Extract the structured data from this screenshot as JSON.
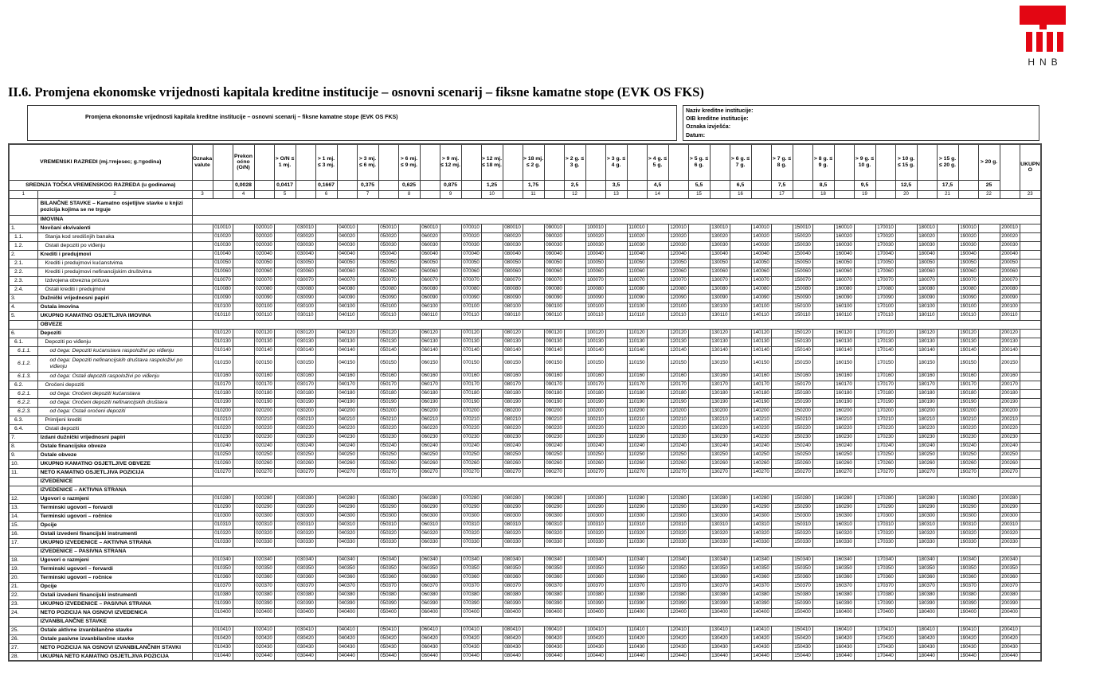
{
  "logo": {
    "text": "HNB",
    "color": "#e30613"
  },
  "page_title": "II.6. Promjena ekonomske vrijednosti kapitala kreditne institucije – osnovni scenarij – fiksne kamatne stope (EVK OS FKS)",
  "info": {
    "subtitle": "Promjena ekonomske vrijednosti kapitala kreditne institucije – osnovni scenarij – fiksne kamatne stope (EVK OS FKS)",
    "fields": [
      "Naziv kreditne institucije:",
      "OIB kreditne institucije:",
      "Oznaka izvješća:",
      "Datum:"
    ]
  },
  "table": {
    "header": {
      "time_classes_label": "VREMENSKI RAZREDI (mj.=mjesec; g.=godina)",
      "currency_label": "Oznaka valute",
      "midpoint_label": "SREDNJA TOČKA VREMENSKOG RAZREDA (u godinama)",
      "col_numbers": [
        "1",
        "2",
        "3"
      ],
      "buckets": [
        {
          "label": "Prekonoćno (O/N)",
          "midpoint": "0,0028",
          "col": "4"
        },
        {
          "label": "> O/N ≤ 1 mj.",
          "midpoint": "0,0417",
          "col": "5"
        },
        {
          "label": "> 1 mj. ≤ 3 mj.",
          "midpoint": "0,1667",
          "col": "6"
        },
        {
          "label": "> 3 mj. ≤ 6 mj.",
          "midpoint": "0,375",
          "col": "7"
        },
        {
          "label": "> 6 mj. ≤ 9 mj.",
          "midpoint": "0,625",
          "col": "8"
        },
        {
          "label": "> 9 mj. ≤ 12 mj.",
          "midpoint": "0,875",
          "col": "9"
        },
        {
          "label": "> 12 mj. ≤ 18 mj.",
          "midpoint": "1,25",
          "col": "10"
        },
        {
          "label": "> 18 mj. ≤ 2 g.",
          "midpoint": "1,75",
          "col": "11"
        },
        {
          "label": "> 2 g. ≤ 3 g.",
          "midpoint": "2,5",
          "col": "12"
        },
        {
          "label": "> 3 g. ≤ 4 g.",
          "midpoint": "3,5",
          "col": "13"
        },
        {
          "label": "> 4 g. ≤ 5 g.",
          "midpoint": "4,5",
          "col": "14"
        },
        {
          "label": "> 5 g. ≤ 6 g.",
          "midpoint": "5,5",
          "col": "15"
        },
        {
          "label": "> 6 g. ≤ 7 g.",
          "midpoint": "6,5",
          "col": "16"
        },
        {
          "label": "> 7 g. ≤ 8 g.",
          "midpoint": "7,5",
          "col": "17"
        },
        {
          "label": "> 8 g. ≤ 9 g.",
          "midpoint": "8,5",
          "col": "18"
        },
        {
          "label": "> 9 g. ≤ 10 g.",
          "midpoint": "9,5",
          "col": "19"
        },
        {
          "label": "> 10 g. ≤ 15 g.",
          "midpoint": "12,5",
          "col": "20"
        },
        {
          "label": "> 15 g. ≤ 20 g.",
          "midpoint": "17,5",
          "col": "21"
        },
        {
          "label": "> 20 g.",
          "midpoint": "25",
          "col": "22"
        },
        {
          "label": "UKUPNO",
          "midpoint": "",
          "col": "23"
        }
      ]
    },
    "rows": [
      {
        "num": "",
        "label": "BILANČNE STAVKE – Kamatno osjetljive stavke u knjizi pozicija kojima se ne trguje",
        "type": "section",
        "tall": true,
        "thick": true
      },
      {
        "num": "",
        "label": "IMOVINA",
        "type": "section",
        "thick": true
      },
      {
        "num": "1.",
        "label": "Novčani ekvivalenti",
        "bold": true,
        "thick": true,
        "codes": "010010 020010 030010 040010 050010 060010 070010 080010 090010 100010 110010 120010 130010 140010 150010 160010 170010 180010 190010 200010"
      },
      {
        "num": "1.1.",
        "label": "Stanja kod središnjih banaka",
        "codes": "010020 020020 030020 040020 050020 060020 070020 080020 090020 100020 110020 120020 130020 140020 150020 160020 170020 180020 190020 200020"
      },
      {
        "num": "1.2.",
        "label": "Ostali depoziti po viđenju",
        "codes": "010030 020030 030030 040030 050030 060030 070030 080030 090030 100030 110030 120030 130030 140030 150030 160030 170030 180030 190030 200030"
      },
      {
        "num": "2.",
        "label": "Krediti i predujmovi",
        "bold": true,
        "thick": true,
        "codes": "010040 020040 030040 040040 050040 060040 070040 080040 090040 100040 110040 120040 130040 140040 150040 160040 170040 180040 190040 200040"
      },
      {
        "num": "2.1.",
        "label": "Krediti i predujmovi kućanstvima",
        "codes": "010050 020050 030050 040050 050050 060050 070050 080050 090050 100050 110050 120050 130050 140050 150050 160050 170050 180050 190050 200050"
      },
      {
        "num": "2.2.",
        "label": "Krediti i predujmovi nefinancijskim društvima",
        "codes": "010060 020060 030060 040060 050060 060060 070060 080060 090060 100060 110060 120060 130060 140060 150060 160060 170060 180060 190060 200060"
      },
      {
        "num": "2.3.",
        "label": "Izdvojena obvezna pričuva",
        "codes": "010070 020070 030070 040070 050070 060070 070070 080070 090070 100070 110070 120070 130070 140070 150070 160070 170070 180070 190070 200070"
      },
      {
        "num": "2.4.",
        "label": "Ostali krediti i predujmovi",
        "codes": "010080 020080 030080 040080 050080 060080 070080 080080 090080 100080 110080 120080 130080 140080 150080 160080 170080 180080 190080 200080"
      },
      {
        "num": "3.",
        "label": "Dužnički vrijednosni papiri",
        "bold": true,
        "thick": true,
        "codes": "010090 020090 030090 040090 050090 060090 070090 080090 090090 100090 110090 120090 130090 140090 150090 160090 170090 180090 190090 200090"
      },
      {
        "num": "4.",
        "label": "Ostala imovina",
        "bold": true,
        "thick": true,
        "codes": "010100 020100 030100 040100 050100 060100 070100 080100 090100 100100 110100 120100 130100 140100 150100 160100 170100 180100 190100 200100"
      },
      {
        "num": "5.",
        "label": "UKUPNO KAMATNO OSJETLJIVA IMOVINA",
        "bold": true,
        "thick": true,
        "codes": "010110 020110 030110 040110 050110 060110 070110 080110 090110 100110 110110 120110 130110 140110 150110 160110 170110 180110 190110 200110"
      },
      {
        "num": "",
        "label": "OBVEZE",
        "type": "section",
        "thick": true
      },
      {
        "num": "6.",
        "label": "Depoziti",
        "bold": true,
        "thick": true,
        "codes": "010120 020120 030120 040120 050120 060120 070120 080120 090120 100120 110120 120120 130120 140120 150120 160120 170120 180120 190120 200120"
      },
      {
        "num": "6.1.",
        "label": "Depoziti po viđenju",
        "codes": "010130 020130 030130 040130 050130 060130 070130 080130 090130 100130 110130 120130 130130 140130 150130 160130 170130 180130 190130 200130"
      },
      {
        "num": "6.1.1.",
        "label": "od čega: Depoziti kućanstava raspoloživi po viđenju",
        "italic": true,
        "codes": "010140 020140 030140 040140 050140 060140 070140 080140 090140 100140 110140 120140 130140 140140 150140 160140 170140 180140 190140 200140"
      },
      {
        "num": "6.1.2.",
        "label": "od čega: Depoziti nefinancijskih društava raspoloživi po viđenju",
        "italic": true,
        "tall": true,
        "codes": "010150 020150 030150 040150 050150 060150 070150 080150 090150 100150 110150 120150 130150 140150 150150 160150 170150 180150 190150 200150"
      },
      {
        "num": "6.1.3.",
        "label": "od čega: Ostali depoziti raspoloživi po viđenju",
        "italic": true,
        "codes": "010160 020160 030160 040160 050160 060160 070160 080160 090160 100160 110160 120160 130160 140160 150160 160160 170160 180160 190160 200160"
      },
      {
        "num": "6.2.",
        "label": "Oročeni depoziti",
        "codes": "010170 020170 030170 040170 050170 060170 070170 080170 090170 100170 110170 120170 130170 140170 150170 160170 170170 180170 190170 200170"
      },
      {
        "num": "6.2.1.",
        "label": "od čega: Oročeni depoziti kućanstava",
        "italic": true,
        "codes": "010180 020180 030180 040180 050180 060180 070180 080180 090180 100180 110180 120180 130180 140180 150180 160180 170180 180180 190180 200180"
      },
      {
        "num": "6.2.2.",
        "label": "od čega: Oročeni depoziti nefinancijskih društava",
        "italic": true,
        "codes": "010190 020190 030190 040190 050190 060190 070190 080190 090190 100190 110190 120190 130190 140190 150190 160190 170190 180190 190190 200190"
      },
      {
        "num": "6.2.3.",
        "label": "od čega: Ostali oročeni depoziti",
        "italic": true,
        "codes": "010200 020200 030200 040200 050200 060200 070200 080200 090200 100200 110200 120200 130200 140200 150200 160200 170200 180200 190200 200200"
      },
      {
        "num": "6.3.",
        "label": "Primljeni krediti",
        "codes": "010210 020210 030210 040210 050210 060210 070210 080210 090210 100210 110210 120210 130210 140210 150210 160210 170210 180210 190210 200210"
      },
      {
        "num": "6.4.",
        "label": "Ostali depoziti",
        "codes": "010220 020220 030220 040220 050220 060220 070220 080220 090220 100220 110220 120220 130220 140220 150220 160220 170220 180220 190220 200220"
      },
      {
        "num": "7.",
        "label": "Izdani dužnički vrijednosni papiri",
        "bold": true,
        "thick": true,
        "codes": "010230 020230 030230 040230 050230 060230 070230 080230 090230 100230 110230 120230 130230 140230 150230 160230 170230 180230 190230 200230"
      },
      {
        "num": "8.",
        "label": "Ostale financijske obveze",
        "bold": true,
        "thick": true,
        "codes": "010240 020240 030240 040240 050240 060240 070240 080240 090240 100240 110240 120240 130240 140240 150240 160240 170240 180240 190240 200240"
      },
      {
        "num": "9.",
        "label": "Ostale obveze",
        "bold": true,
        "thick": true,
        "codes": "010250 020250 030250 040250 050250 060250 070250 080250 090250 100250 110250 120250 130250 140250 150250 160250 170250 180250 190250 200250"
      },
      {
        "num": "10.",
        "label": "UKUPNO KAMATNO OSJETLJIVE OBVEZE",
        "bold": true,
        "thick": true,
        "codes": "010260 020260 030260 040260 050260 060260 070260 080260 090260 100260 110260 120260 130260 140260 150260 160260 170260 180260 190260 200260"
      },
      {
        "num": "11.",
        "label": "NETO KAMATNO OSJETLJIVA POZICIJA",
        "bold": true,
        "thick": true,
        "codes": "010270 020270 030270 040270 050270 060270 070270 080270 090270 100270 110270 120270 130270 140270 150270 160270 170270 180270 190270 200270"
      },
      {
        "num": "",
        "label": "IZVEDENICE",
        "type": "section",
        "thick": true
      },
      {
        "num": "",
        "label": "IZVEDENICE – AKTIVNA STRANA",
        "type": "section"
      },
      {
        "num": "12.",
        "label": "Ugovori o razmjeni",
        "bold": true,
        "thick": true,
        "codes": "010280 020280 030280 040280 050280 060280 070280 080280 090280 100280 110280 120280 130280 140280 150280 160280 170280 180280 190280 200280"
      },
      {
        "num": "13.",
        "label": "Terminski ugovori – forvardi",
        "bold": true,
        "thick": true,
        "codes": "010290 020290 030290 040290 050290 060290 070290 080290 090290 100290 110290 120290 130290 140290 150290 160290 170290 180290 190290 200290"
      },
      {
        "num": "14.",
        "label": "Terminski ugovori – ročnice",
        "bold": true,
        "thick": true,
        "codes": "010300 020300 030300 040300 050300 060300 070300 080300 090300 100300 110300 120300 130300 140300 150300 160300 170300 180300 190300 200300"
      },
      {
        "num": "15.",
        "label": "Opcije",
        "bold": true,
        "thick": true,
        "codes": "010310 020310 030310 040310 050310 060310 070310 080310 090310 100310 110310 120310 130310 140310 150310 160310 170310 180310 190310 200310"
      },
      {
        "num": "16.",
        "label": "Ostali izvedeni financijski instrumenti",
        "bold": true,
        "thick": true,
        "codes": "010320 020320 030320 040320 050320 060320 070320 080320 090320 100320 110320 120320 130320 140320 150320 160320 170320 180320 190320 200320"
      },
      {
        "num": "17.",
        "label": "UKUPNO IZVEDENICE – AKTIVNA STRANA",
        "bold": true,
        "thick": true,
        "codes": "010330 020330 030330 040330 050330 060330 070330 080330 090330 100330 110330 120330 130330 140330 150330 160330 170330 180330 190330 200330"
      },
      {
        "num": "",
        "label": "IZVEDENICE – PASIVNA STRANA",
        "type": "section",
        "thick": true
      },
      {
        "num": "18.",
        "label": "Ugovori o razmjeni",
        "bold": true,
        "thick": true,
        "codes": "010340 020340 030340 040340 050340 060340 070340 080340 090340 100340 110340 120340 130340 140340 150340 160340 170340 180340 190340 200340"
      },
      {
        "num": "19.",
        "label": "Terminski ugovori – forvardi",
        "bold": true,
        "thick": true,
        "codes": "010350 020350 030350 040350 050350 060350 070350 080350 090350 100350 110350 120350 130350 140350 150350 160350 170350 180350 190350 200350"
      },
      {
        "num": "20.",
        "label": "Terminski ugovori – ročnice",
        "bold": true,
        "thick": true,
        "codes": "010360 020360 030360 040360 050360 060360 070360 080360 090360 100360 110360 120360 130360 140360 150360 160360 170360 180360 190360 200360"
      },
      {
        "num": "21.",
        "label": "Opcije",
        "bold": true,
        "thick": true,
        "codes": "010370 020370 030370 040370 050370 060370 070370 080370 090370 100370 110370 120370 130370 140370 150370 160370 170370 180370 190370 200370"
      },
      {
        "num": "22.",
        "label": "Ostali izvedeni financijski instrumenti",
        "bold": true,
        "thick": true,
        "codes": "010380 020380 030380 040380 050380 060380 070380 080380 090380 100380 110380 120380 130380 140380 150380 160380 170380 180380 190380 200380"
      },
      {
        "num": "23.",
        "label": "UKUPNO IZVEDENICE – PASIVNA STRANA",
        "bold": true,
        "thick": true,
        "codes": "010390 020390 030390 040390 050390 060390 070390 080390 090390 100390 110390 120390 130390 140390 150390 160390 170390 180390 190390 200390"
      },
      {
        "num": "24.",
        "label": "NETO POZICIJA NA OSNOVI IZVEDENICA",
        "bold": true,
        "thick": true,
        "codes": "010400 020400 030400 040400 050400 060400 070400 080400 090400 100400 110400 120400 130400 140400 150400 160400 170400 180400 190400 200400"
      },
      {
        "num": "",
        "label": "IZVANBILANČNE STAVKE",
        "type": "section",
        "thick": true
      },
      {
        "num": "25.",
        "label": "Ostale aktivne izvanbilančne stavke",
        "bold": true,
        "thick": true,
        "codes": "010410 020410 030410 040410 050410 060410 070410 080410 090410 100410 110410 120410 130410 140410 150410 160410 170410 180410 190410 200410"
      },
      {
        "num": "26.",
        "label": "Ostale pasivne izvanbilančne stavke",
        "bold": true,
        "thick": true,
        "codes": "010420 020420 030420 040420 050420 060420 070420 080420 090420 100420 110420 120420 130420 140420 150420 160420 170420 180420 190420 200420"
      },
      {
        "num": "27.",
        "label": "NETO POZICIJA NA OSNOVI IZVANBILANČNIH STAVKI",
        "bold": true,
        "thick": true,
        "codes": "010430 020430 030430 040430 050430 060430 070430 080430 090430 100430 110430 120430 130430 140430 150430 160430 170430 180430 190430 200430"
      },
      {
        "num": "28.",
        "label": "UKUPNA NETO KAMATNO OSJETLJIVA POZICIJA",
        "bold": true,
        "thick": true,
        "codes": "010440 020440 030440 040440 050440 060440 070440 080440 090440 100440 110440 120440 130440 140440 150440 160440 170440 180440 190440 200440"
      }
    ]
  }
}
